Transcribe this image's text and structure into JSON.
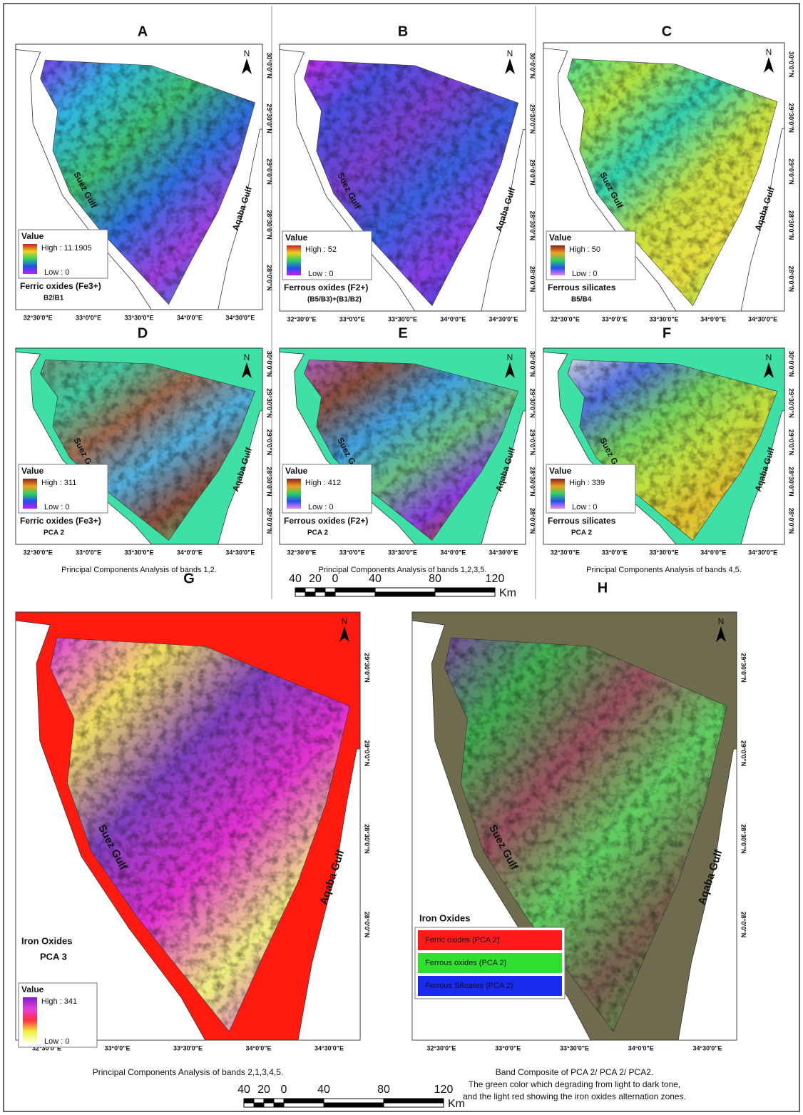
{
  "coordinates": {
    "latitude": [
      "30°0'0\"N",
      "29°30'0\"N",
      "29°0'0\"N",
      "28°30'0\"N",
      "28°0'0\"N"
    ],
    "longitude": [
      "32°30'0\"E",
      "33°0'0\"E",
      "33°30'0\"E",
      "34°0'0\"E",
      "34°30'0\"E"
    ]
  },
  "map_labels": {
    "north": "N",
    "suez": "Suez Gulf",
    "aqaba": "Aqaba Gulf"
  },
  "panels": [
    {
      "letter": "A",
      "legend": {
        "title": "Value",
        "high": "High : 11.1905",
        "low": "Low : 0"
      },
      "title": "Ferric oxides (Fe3+)",
      "subtitle": "B2/B1"
    },
    {
      "letter": "B",
      "legend": {
        "title": "Value",
        "high": "High : 52",
        "low": "Low : 0"
      },
      "title": "Ferrous oxides (F2+)",
      "subtitle": "(B5/B3)+(B1/B2)"
    },
    {
      "letter": "C",
      "legend": {
        "title": "Value",
        "high": "High : 50",
        "low": "Low : 0"
      },
      "title": "Ferrous silicates",
      "subtitle": "B5/B4"
    },
    {
      "letter": "D",
      "legend": {
        "title": "Value",
        "high": "High : 311",
        "low": "Low : 0"
      },
      "title": "Ferric oxides (Fe3+)",
      "subtitle": "PCA 2",
      "caption": [
        "Principal Components Analysis of bands 1,2."
      ]
    },
    {
      "letter": "E",
      "legend": {
        "title": "Value",
        "high": "High : 412",
        "low": "Low : 0"
      },
      "title": "Ferrous oxides (F2+)",
      "subtitle": "PCA 2",
      "caption": [
        "Principal Components Analysis of bands 1,2,3,5."
      ]
    },
    {
      "letter": "F",
      "legend": {
        "title": "Value",
        "high": "High : 339",
        "low": "Low : 0"
      },
      "title": "Ferrous silicates",
      "subtitle": "PCA 2",
      "caption": [
        "Principal Components Analysis of bands 4,5."
      ]
    },
    {
      "letter": "G",
      "legend": {
        "title": "Value",
        "high": "High : 341",
        "low": "Low : 0"
      },
      "title": "Iron Oxides",
      "subtitle": "PCA 3",
      "caption": [
        "Principal Components Analysis of bands 2,1,3,4,5."
      ]
    },
    {
      "letter": "H",
      "legend": {
        "items": [
          "Ferric oxides (PCA 2)",
          "Ferrous oxides (PCA 2)",
          "Ferrous Silicates (PCA 2)"
        ]
      },
      "title": "Iron Oxides",
      "caption": [
        "Band Composite of PCA 2/ PCA 2/ PCA2.",
        "The green color which degrading from light to dark tone,",
        "and the light red showing the iron oxides alternation zones."
      ]
    }
  ],
  "scale_bar": {
    "labels": [
      "40",
      "20",
      "0",
      "40",
      "80",
      "120"
    ],
    "unit": "Km"
  }
}
